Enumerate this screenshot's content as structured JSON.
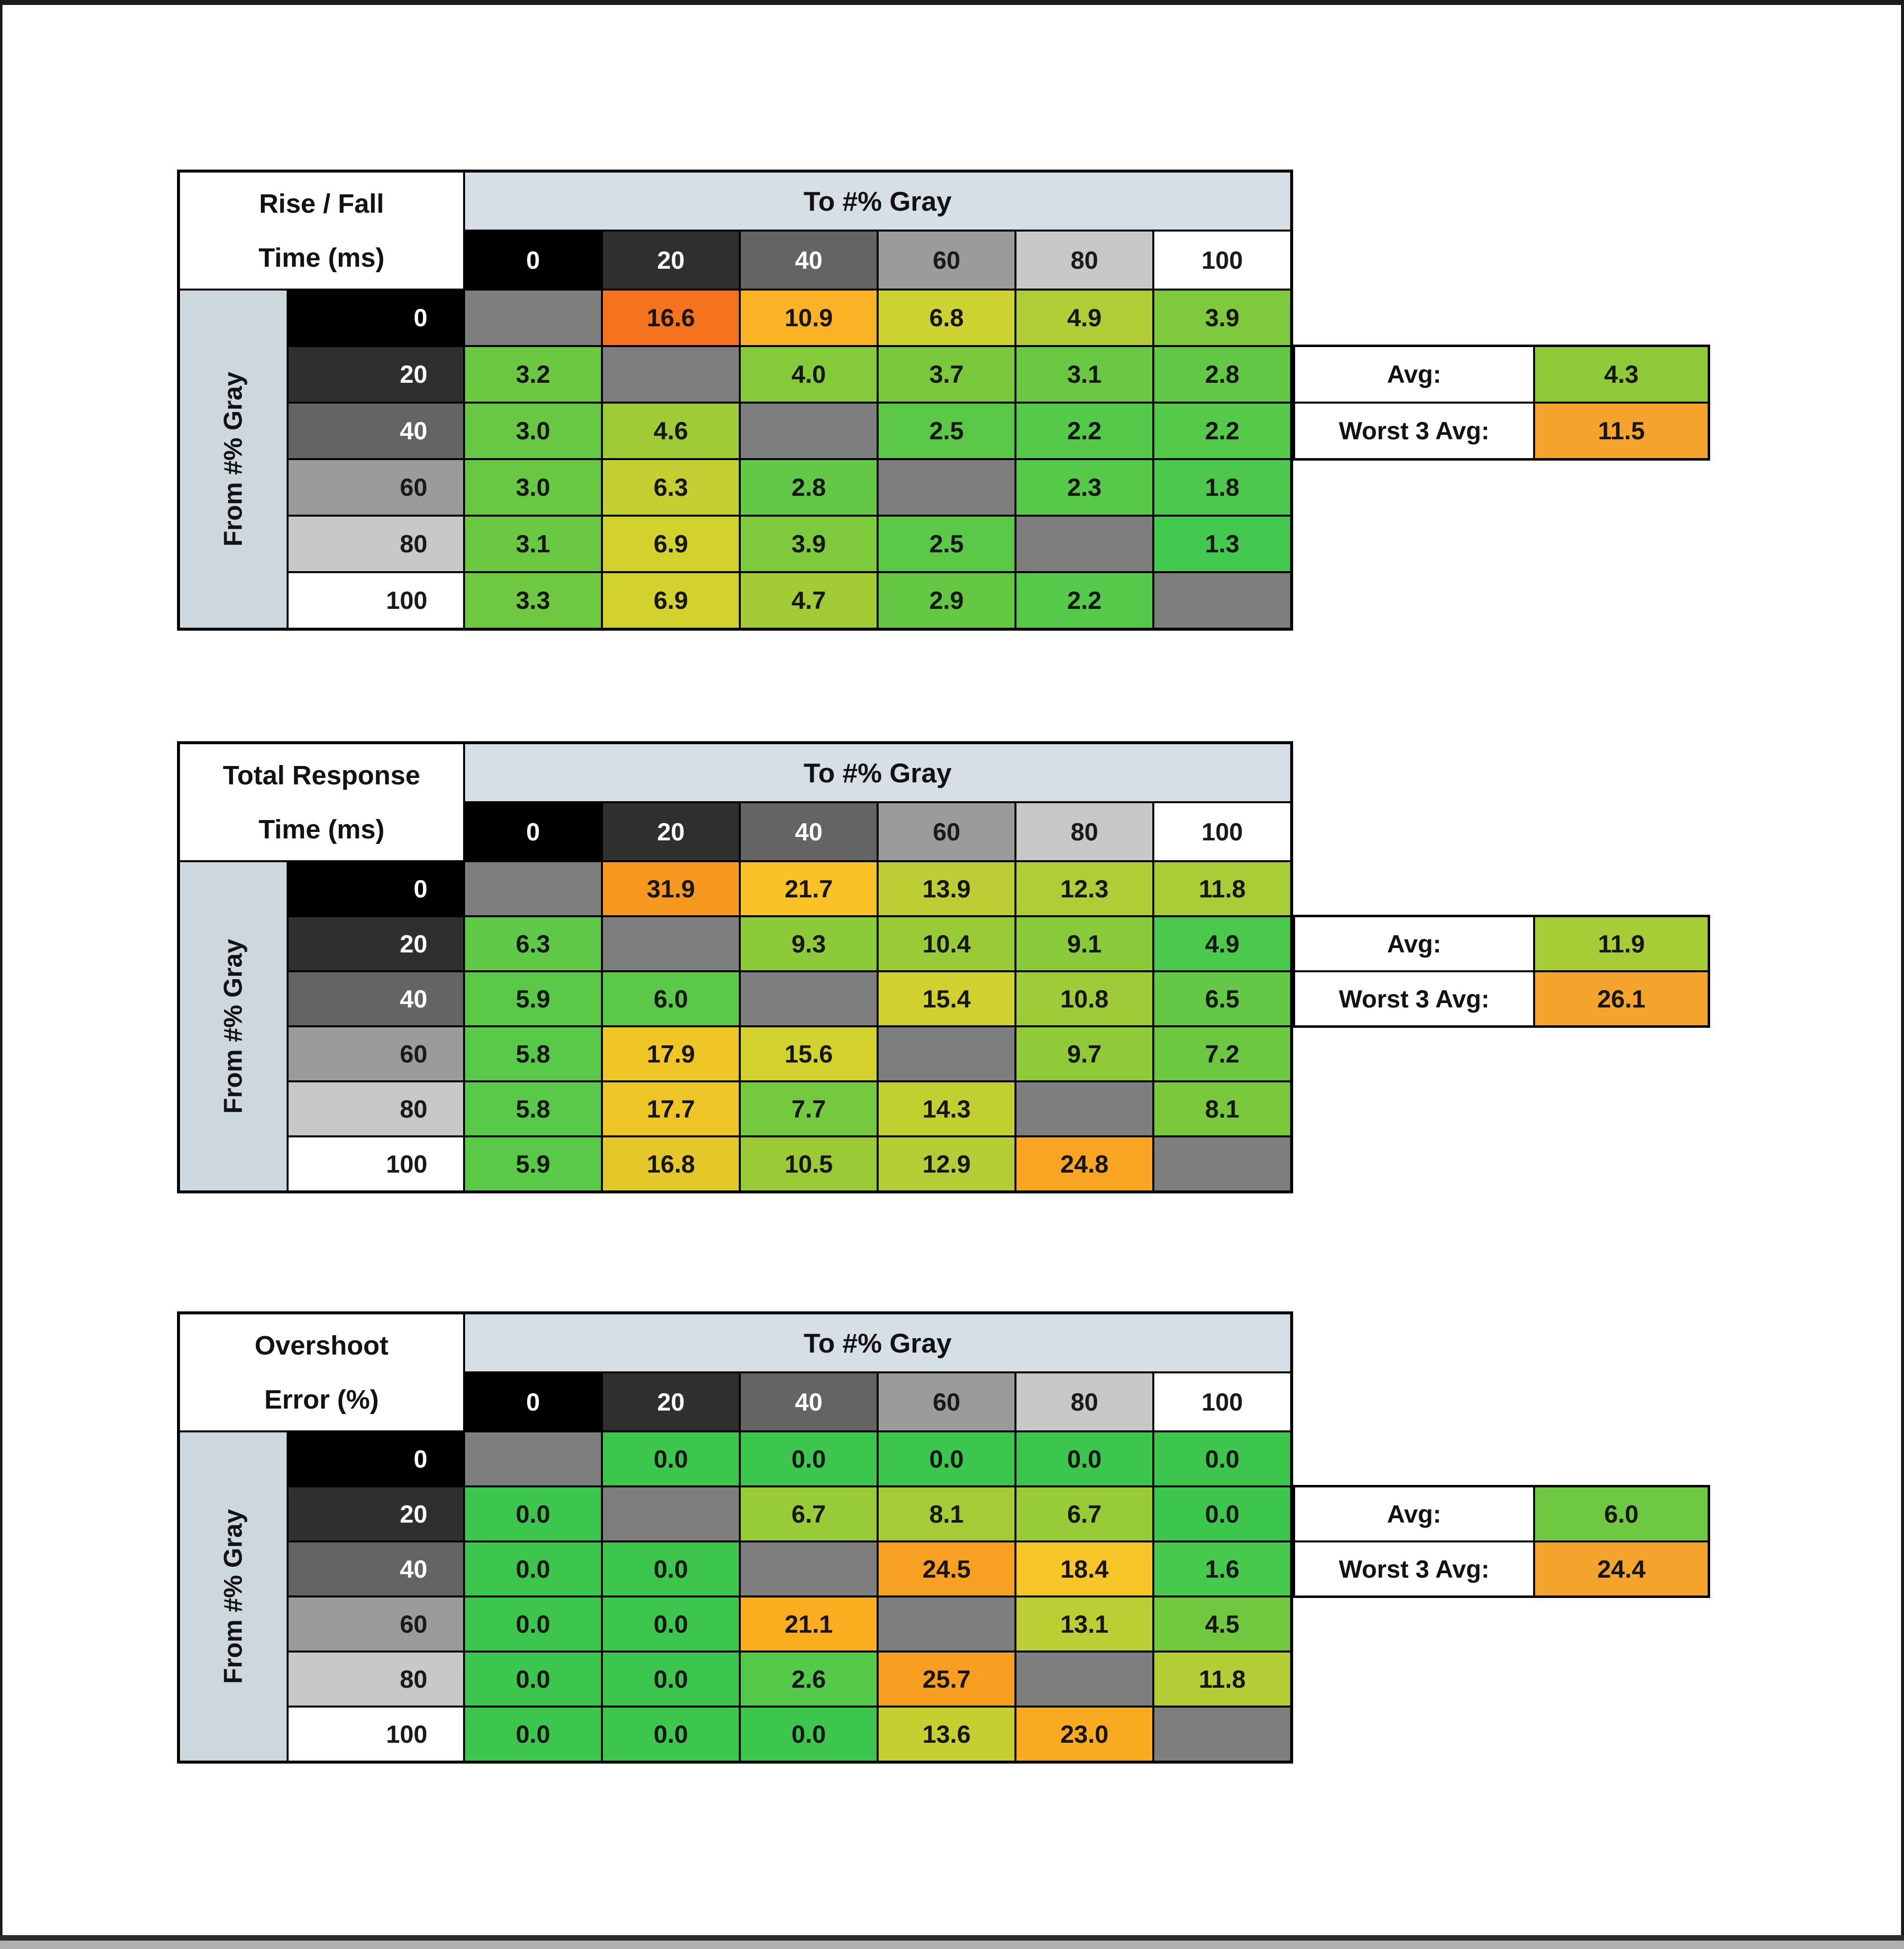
{
  "page": {
    "background": "#FFFFFF",
    "frame_color": "#1B1B1B",
    "bottom_line_color": "#2B2B2B",
    "bottom_bar_color": "#AFAFAF"
  },
  "shared": {
    "x_axis_label": "To #% Gray",
    "y_axis_label": "From #% Gray",
    "gray_levels": [
      "0",
      "20",
      "40",
      "60",
      "80",
      "100"
    ],
    "level_bg": [
      "#000000",
      "#2F2F2F",
      "#646464",
      "#9B9B9B",
      "#C8C8C8",
      "#FFFFFF"
    ],
    "level_fg": [
      "#FFFFFF",
      "#FFFFFF",
      "#FFFFFF",
      "#1A1A1A",
      "#1A1A1A",
      "#1A1A1A"
    ],
    "diagonal_color": "#7E7E7E",
    "top_band_color": "#D6DFE5",
    "side_band_color": "#CDD7DE",
    "avg_label": "Avg:",
    "worst3_label": "Worst 3 Avg:"
  },
  "chart_data": [
    {
      "type": "heatmap",
      "title": "Rise / Fall Time (ms)",
      "title_lines": [
        "Rise / Fall",
        "Time (ms)"
      ],
      "x_label": "To #% Gray",
      "y_label": "From #% Gray",
      "from_levels": [
        0,
        20,
        40,
        60,
        80,
        100
      ],
      "to_levels": [
        0,
        20,
        40,
        60,
        80,
        100
      ],
      "values": [
        [
          null,
          16.6,
          10.9,
          6.8,
          4.9,
          3.9
        ],
        [
          3.2,
          null,
          4.0,
          3.7,
          3.1,
          2.8
        ],
        [
          3.0,
          4.6,
          null,
          2.5,
          2.2,
          2.2
        ],
        [
          3.0,
          6.3,
          2.8,
          null,
          2.3,
          1.8
        ],
        [
          3.1,
          6.9,
          3.9,
          2.5,
          null,
          1.3
        ],
        [
          3.3,
          6.9,
          4.7,
          2.9,
          2.2,
          null
        ]
      ],
      "cell_colors": [
        [
          null,
          "#F5731E",
          "#FBB224",
          "#CCD22F",
          "#B0CD35",
          "#7FC93C"
        ],
        [
          "#6CC841",
          null,
          "#85CA3A",
          "#7AC93D",
          "#6AC842",
          "#62C845"
        ],
        [
          "#68C843",
          "#A0CB37",
          null,
          "#5CC847",
          "#54C94A",
          "#54C94A"
        ],
        [
          "#68C843",
          "#C4D031",
          "#62C845",
          null,
          "#56C949",
          "#4CC94C"
        ],
        [
          "#6AC842",
          "#D2D12D",
          "#7FC93C",
          "#5CC847",
          null,
          "#43C94F"
        ],
        [
          "#6EC840",
          "#D2D12D",
          "#A2CB36",
          "#65C844",
          "#54C94A",
          null
        ]
      ],
      "avg": 4.3,
      "avg_text": "4.3",
      "avg_color": "#8FCA39",
      "worst3_avg": 11.5,
      "worst3_text": "11.5",
      "worst3_color": "#F4A42C"
    },
    {
      "type": "heatmap",
      "title": "Total Response Time (ms)",
      "title_lines": [
        "Total Response",
        "Time (ms)"
      ],
      "x_label": "To #% Gray",
      "y_label": "From #% Gray",
      "from_levels": [
        0,
        20,
        40,
        60,
        80,
        100
      ],
      "to_levels": [
        0,
        20,
        40,
        60,
        80,
        100
      ],
      "values": [
        [
          null,
          31.9,
          21.7,
          13.9,
          12.3,
          11.8
        ],
        [
          6.3,
          null,
          9.3,
          10.4,
          9.1,
          4.9
        ],
        [
          5.9,
          6.0,
          null,
          15.4,
          10.8,
          6.5
        ],
        [
          5.8,
          17.9,
          15.6,
          null,
          9.7,
          7.2
        ],
        [
          5.8,
          17.7,
          7.7,
          14.3,
          null,
          8.1
        ],
        [
          5.9,
          16.8,
          10.5,
          12.9,
          24.8,
          null
        ]
      ],
      "cell_colors": [
        [
          null,
          "#F8991F",
          "#FBC228",
          "#BCCE33",
          "#AFCD35",
          "#AACC36"
        ],
        [
          "#5FC847",
          null,
          "#8CCA39",
          "#99CB37",
          "#89CA3A",
          "#4BC94C"
        ],
        [
          "#5AC948",
          "#5CC847",
          null,
          "#D0D12E",
          "#9ECB37",
          "#62C845"
        ],
        [
          "#58C948",
          "#EFC626",
          "#D2D12D",
          null,
          "#90CA38",
          "#6CC841"
        ],
        [
          "#58C948",
          "#EDC527",
          "#74C93E",
          "#C2CF31",
          null,
          "#7AC93D"
        ],
        [
          "#5AC948",
          "#E4C829",
          "#9ACB37",
          "#B4CD34",
          "#F7A522",
          null
        ]
      ],
      "avg": 11.9,
      "avg_text": "11.9",
      "avg_color": "#A6CC36",
      "worst3_avg": 26.1,
      "worst3_text": "26.1",
      "worst3_color": "#F4A42C"
    },
    {
      "type": "heatmap",
      "title": "Overshoot Error (%)",
      "title_lines": [
        "Overshoot",
        "Error (%)"
      ],
      "x_label": "To #% Gray",
      "y_label": "From #% Gray",
      "from_levels": [
        0,
        20,
        40,
        60,
        80,
        100
      ],
      "to_levels": [
        0,
        20,
        40,
        60,
        80,
        100
      ],
      "values": [
        [
          null,
          0.0,
          0.0,
          0.0,
          0.0,
          0.0
        ],
        [
          0.0,
          null,
          6.7,
          8.1,
          6.7,
          0.0
        ],
        [
          0.0,
          0.0,
          null,
          24.5,
          18.4,
          1.6
        ],
        [
          0.0,
          0.0,
          21.1,
          null,
          13.1,
          4.5
        ],
        [
          0.0,
          0.0,
          2.6,
          25.7,
          null,
          11.8
        ],
        [
          0.0,
          0.0,
          0.0,
          13.6,
          23.0,
          null
        ]
      ],
      "cell_colors": [
        [
          null,
          "#3CC64E",
          "#3CC64E",
          "#3CC64E",
          "#3CC64E",
          "#3CC64E"
        ],
        [
          "#3CC64E",
          null,
          "#98CB38",
          "#A5CC36",
          "#98CB38",
          "#3CC64E"
        ],
        [
          "#3CC64E",
          "#3CC64E",
          null,
          "#F8A021",
          "#F6C527",
          "#47C94D"
        ],
        [
          "#3CC64E",
          "#3CC64E",
          "#FAAE1F",
          null,
          "#BBCE33",
          "#71C83F"
        ],
        [
          "#3CC64E",
          "#3CC64E",
          "#55C94A",
          "#F89E20",
          null,
          "#B2CD35"
        ],
        [
          "#3CC64E",
          "#3CC64E",
          "#3CC64E",
          "#C5D030",
          "#F9AA1F",
          null
        ]
      ],
      "avg": 6.0,
      "avg_text": "6.0",
      "avg_color": "#6FC841",
      "worst3_avg": 24.4,
      "worst3_text": "24.4",
      "worst3_color": "#F4A42C"
    }
  ]
}
